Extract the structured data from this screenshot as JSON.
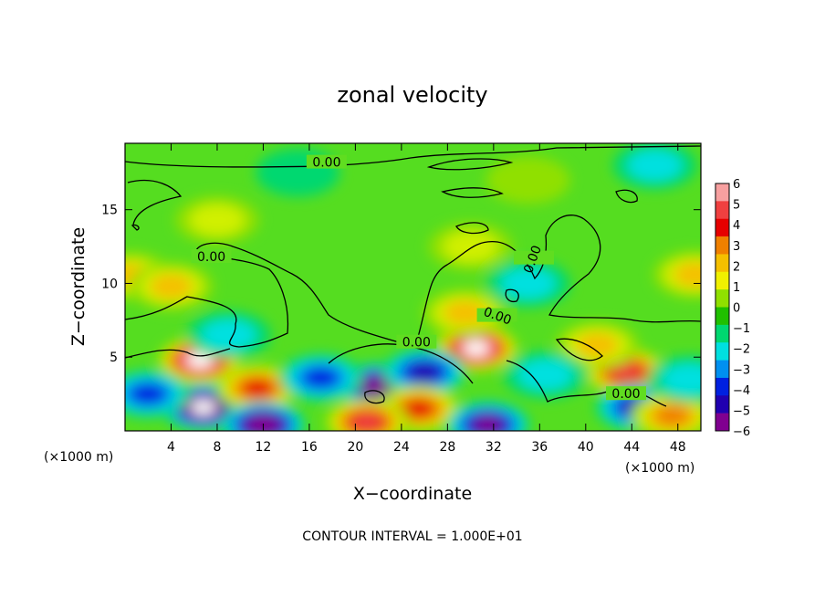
{
  "chart_data": {
    "type": "heatmap",
    "title": "zonal velocity",
    "xlabel": "X−coordinate",
    "ylabel": "Z−coordinate",
    "x_unit": "(×1000 m)",
    "z_unit": "(×1000 m)",
    "xlim": [
      0,
      50
    ],
    "ylim": [
      0,
      19.5
    ],
    "x_ticks": [
      "4",
      "8",
      "12",
      "16",
      "20",
      "24",
      "28",
      "32",
      "36",
      "40",
      "44",
      "48"
    ],
    "y_ticks": [
      "5",
      "10",
      "15"
    ],
    "x_tick_values": [
      4,
      8,
      12,
      16,
      20,
      24,
      28,
      32,
      36,
      40,
      44,
      48
    ],
    "y_tick_values": [
      5,
      10,
      15
    ],
    "footer": "CONTOUR INTERVAL = 1.000E+01",
    "colorbar": {
      "labels": [
        "6",
        "5",
        "4",
        "3",
        "2",
        "1",
        "0",
        "−1",
        "−2",
        "−3",
        "−4",
        "−5",
        "−6"
      ],
      "colors": [
        "#f7a0a0",
        "#f04040",
        "#e60000",
        "#f08000",
        "#f5c000",
        "#f0f000",
        "#90e000",
        "#20c000",
        "#00d870",
        "#00e0e0",
        "#0090f0",
        "#0020e0",
        "#2000b0",
        "#800090"
      ]
    },
    "contour_labels": [
      {
        "text": "0.00",
        "x": 17.5,
        "z": 18.1
      },
      {
        "text": "0.00",
        "x": 7.5,
        "z": 11.7
      },
      {
        "text": "0.00",
        "x": 35.5,
        "z": 11.6
      },
      {
        "text": "0.00",
        "x": 32.3,
        "z": 7.7
      },
      {
        "text": "0.00",
        "x": 25.3,
        "z": 5.9
      },
      {
        "text": "0.00",
        "x": 43.5,
        "z": 2.4
      }
    ],
    "anomalies": [
      {
        "x": 6.5,
        "z": 4.8,
        "value": 8
      },
      {
        "x": 6.8,
        "z": 1.6,
        "value": -8
      },
      {
        "x": 11.5,
        "z": 2.9,
        "value": 5
      },
      {
        "x": 12.0,
        "z": 0.4,
        "value": -7
      },
      {
        "x": 30.5,
        "z": 5.6,
        "value": 8
      },
      {
        "x": 29.5,
        "z": 8.0,
        "value": 3
      },
      {
        "x": 22.0,
        "z": 3.0,
        "value": -7
      },
      {
        "x": 26.0,
        "z": 4.0,
        "value": -5
      },
      {
        "x": 25.5,
        "z": 1.5,
        "value": 5
      },
      {
        "x": 21.0,
        "z": 0.6,
        "value": 6
      },
      {
        "x": 31.5,
        "z": 0.4,
        "value": -6
      },
      {
        "x": 17.0,
        "z": 3.6,
        "value": -4
      },
      {
        "x": 2.0,
        "z": 2.5,
        "value": -4
      },
      {
        "x": 43.5,
        "z": 4.0,
        "value": 6
      },
      {
        "x": 44.5,
        "z": 1.6,
        "value": -5
      },
      {
        "x": 41.0,
        "z": 5.8,
        "value": 3
      },
      {
        "x": 47.5,
        "z": 1.0,
        "value": 4
      },
      {
        "x": 9.0,
        "z": 6.5,
        "value": -2
      },
      {
        "x": 36.5,
        "z": 3.8,
        "value": -2
      },
      {
        "x": 49.0,
        "z": 3.5,
        "value": -2
      },
      {
        "x": 8.0,
        "z": 14.3,
        "value": 2
      },
      {
        "x": 0.5,
        "z": 10.5,
        "value": 2.5
      },
      {
        "x": 49.5,
        "z": 10.6,
        "value": 2.5
      },
      {
        "x": 4.0,
        "z": 9.8,
        "value": 2.5
      },
      {
        "x": 35.0,
        "z": 10.0,
        "value": -1.8
      },
      {
        "x": 46.0,
        "z": 18.0,
        "value": -1.5
      },
      {
        "x": 30.0,
        "z": 12.5,
        "value": 1.5
      },
      {
        "x": 35.0,
        "z": 17.0,
        "value": 1
      },
      {
        "x": 15.0,
        "z": 17.5,
        "value": -0.5
      }
    ]
  }
}
